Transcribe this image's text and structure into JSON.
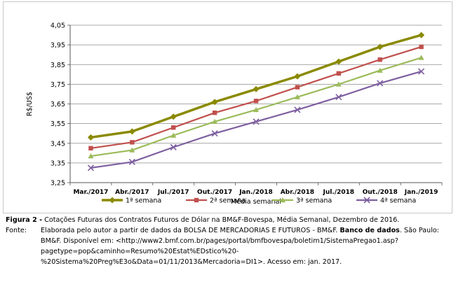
{
  "chart_data": {
    "type": "line",
    "title": "",
    "xlabel": "Média semanal",
    "ylabel": "R$/US$",
    "categories": [
      "Mar./2017",
      "Abr./2017",
      "Jul./2017",
      "Out./2017",
      "Jan./2018",
      "Abr./2018",
      "Jul./2018",
      "Out./2018",
      "Jan./2019"
    ],
    "yticks": [
      "3,25",
      "3,35",
      "3,45",
      "3,55",
      "3,65",
      "3,75",
      "3,85",
      "3,95",
      "4,05"
    ],
    "ylim": [
      3.25,
      4.05
    ],
    "ystep": 0.1,
    "grid": true,
    "legend_position": "bottom",
    "series": [
      {
        "name": "1ª semana",
        "color": "#8a8a00",
        "marker": "diamond",
        "values": [
          3.48,
          3.51,
          3.585,
          3.66,
          3.725,
          3.79,
          3.865,
          3.94,
          4.0
        ]
      },
      {
        "name": "2ª semana",
        "color": "#c0504d",
        "marker": "square",
        "values": [
          3.425,
          3.455,
          3.53,
          3.605,
          3.665,
          3.735,
          3.805,
          3.875,
          3.94
        ]
      },
      {
        "name": "3ª semana",
        "color": "#9bbb59",
        "marker": "triangle",
        "values": [
          3.385,
          3.415,
          3.49,
          3.56,
          3.62,
          3.685,
          3.75,
          3.82,
          3.885
        ]
      },
      {
        "name": "4ª semana",
        "color": "#7e5fa0",
        "marker": "x",
        "values": [
          3.325,
          3.355,
          3.43,
          3.5,
          3.56,
          3.62,
          3.685,
          3.755,
          3.815
        ]
      }
    ]
  },
  "caption": {
    "figure_label": "Figura 2 -",
    "figure_text": " Cotações Futuras dos Contratos Futuros de Dólar na BM&F-Bovespa, Média Semanal, Dezembro de 2016.",
    "source_label": "Fonte:",
    "source_text_1": " Elaborada pelo autor a partir de dados da BOLSA DE MERCADORIAS E FUTUROS - BM&F. ",
    "source_bold": "Banco de dados",
    "source_text_2": ". São Paulo: BM&F. Disponível em: <http://www2.bmf.com.br/pages/portal/bmfbovespa/boletim1/SistemaPregao1.asp?pagetype=pop&caminho=Resumo%20Estat%EDstico%20-%20Sistema%20Preg%E3o&Data=01/11/2013&Mercadoria=DI1>. Acesso em: jan. 2017."
  }
}
